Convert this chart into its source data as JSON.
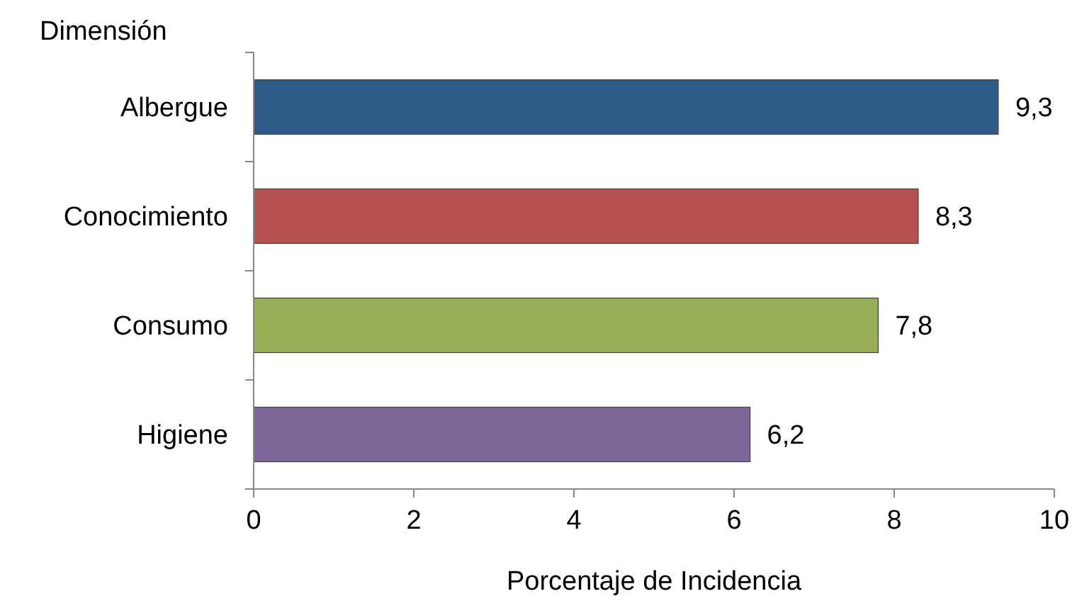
{
  "chart_data": {
    "type": "bar",
    "orientation": "horizontal",
    "ylabel": "Dimensión",
    "xlabel": "Porcentaje de Incidencia",
    "categories": [
      "Albergue",
      "Conocimiento",
      "Consumo",
      "Higiene"
    ],
    "values": [
      9.3,
      8.3,
      7.8,
      6.2
    ],
    "colors": [
      "#2e5a87",
      "#b5524f",
      "#97b055",
      "#7d6698"
    ],
    "value_labels": [
      "9,3",
      "8,3",
      "7,8",
      "6,2"
    ],
    "xlim": [
      0,
      10
    ],
    "xticks": [
      0,
      2,
      4,
      6,
      8,
      10
    ],
    "grid": false
  }
}
